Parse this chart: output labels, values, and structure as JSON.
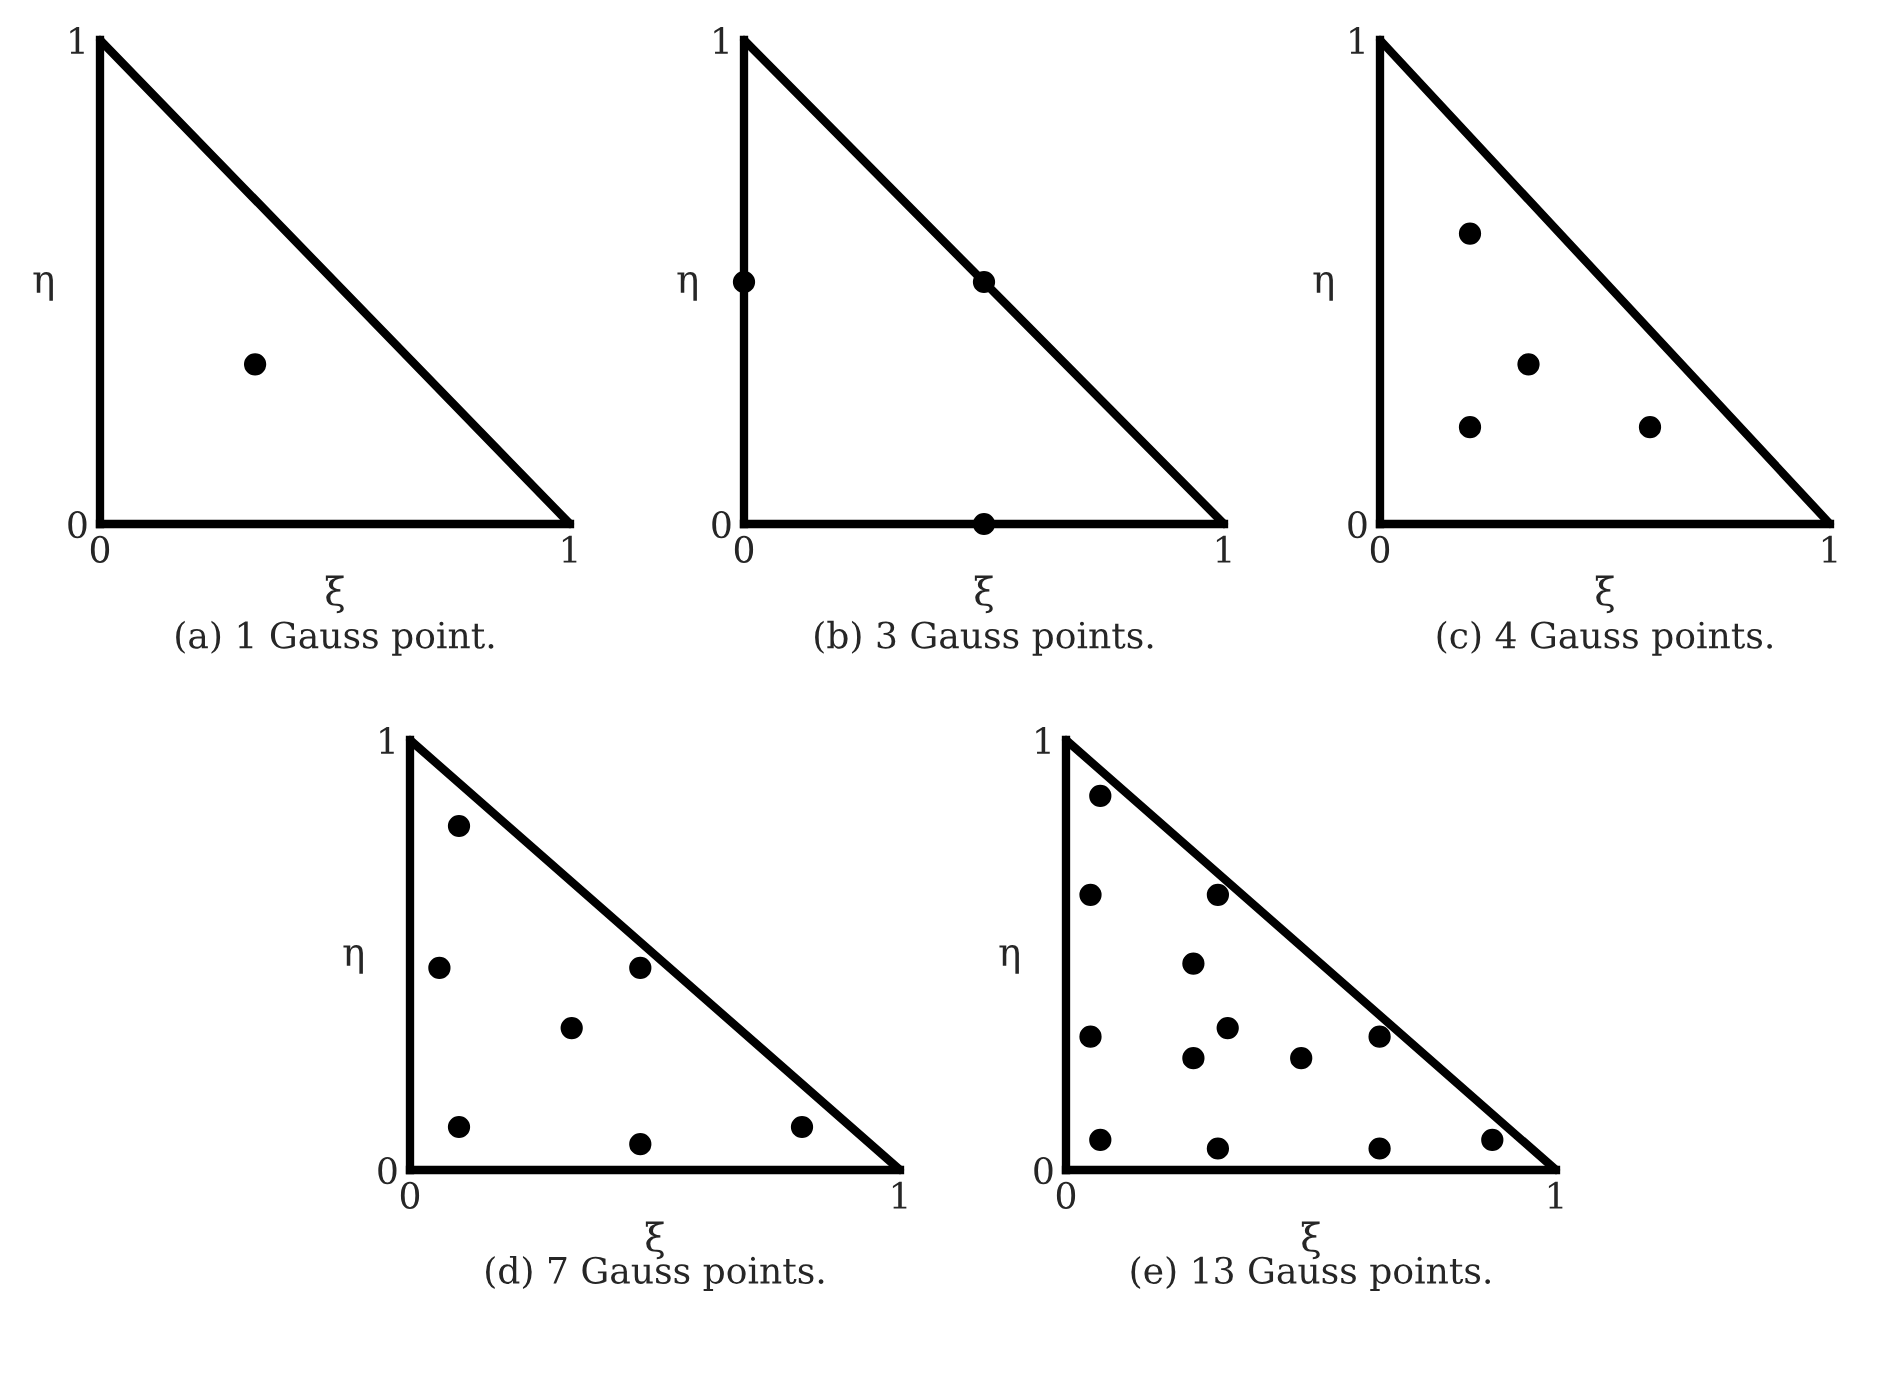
{
  "chart_data": [
    {
      "type": "scatter",
      "xlabel": "ξ",
      "ylabel": "η",
      "xlim": [
        0,
        1
      ],
      "ylim": [
        0,
        1
      ],
      "xticks": [
        0,
        1
      ],
      "yticks": [
        0,
        1
      ],
      "annotations": [
        "(a) 1 Gauss point."
      ],
      "series": [
        {
          "type": "line",
          "marker": "none",
          "color": "#000000",
          "x": [
            0,
            1
          ],
          "values": [
            1,
            0
          ]
        },
        {
          "marker": "circle",
          "color": "#000000",
          "x": [
            0.33
          ],
          "values": [
            0.33
          ]
        }
      ]
    },
    {
      "type": "scatter",
      "xlabel": "ξ",
      "ylabel": "η",
      "xlim": [
        0,
        1
      ],
      "ylim": [
        0,
        1
      ],
      "xticks": [
        0,
        1
      ],
      "yticks": [
        0,
        1
      ],
      "annotations": [
        "(b) 3 Gauss points."
      ],
      "series": [
        {
          "type": "line",
          "marker": "none",
          "color": "#000000",
          "x": [
            0,
            1
          ],
          "values": [
            1,
            0
          ]
        },
        {
          "marker": "circle",
          "color": "#000000",
          "x": [
            0.5,
            0.5,
            0
          ],
          "values": [
            0,
            0.5,
            0.5
          ]
        }
      ]
    },
    {
      "type": "scatter",
      "xlabel": "ξ",
      "ylabel": "η",
      "xlim": [
        0,
        1
      ],
      "ylim": [
        0,
        1
      ],
      "xticks": [
        0,
        1
      ],
      "yticks": [
        0,
        1
      ],
      "annotations": [
        "(c) 4 Gauss points."
      ],
      "series": [
        {
          "type": "line",
          "marker": "none",
          "color": "#000000",
          "x": [
            0,
            1
          ],
          "values": [
            1,
            0
          ]
        },
        {
          "marker": "circle",
          "color": "#000000",
          "x": [
            0.33,
            0.2,
            0.6,
            0.2
          ],
          "values": [
            0.33,
            0.2,
            0.2,
            0.6
          ]
        }
      ]
    },
    {
      "type": "scatter",
      "xlabel": "ξ",
      "ylabel": "η",
      "xlim": [
        0,
        1
      ],
      "ylim": [
        0,
        1
      ],
      "xticks": [
        0,
        1
      ],
      "yticks": [
        0,
        1
      ],
      "annotations": [
        "(d) 7 Gauss points."
      ],
      "series": [
        {
          "type": "line",
          "marker": "none",
          "color": "#000000",
          "x": [
            0,
            1
          ],
          "values": [
            1,
            0
          ]
        },
        {
          "marker": "circle",
          "color": "#000000",
          "x": [
            0.33,
            0.06,
            0.47,
            0.47,
            0.8,
            0.1,
            0.1
          ],
          "values": [
            0.33,
            0.47,
            0.06,
            0.47,
            0.1,
            0.8,
            0.1
          ]
        }
      ]
    },
    {
      "type": "scatter",
      "xlabel": "ξ",
      "ylabel": "η",
      "xlim": [
        0,
        1
      ],
      "ylim": [
        0,
        1
      ],
      "xticks": [
        0,
        1
      ],
      "yticks": [
        0,
        1
      ],
      "annotations": [
        "(e) 13 Gauss points."
      ],
      "series": [
        {
          "type": "line",
          "marker": "none",
          "color": "#000000",
          "x": [
            0,
            1
          ],
          "values": [
            1,
            0
          ]
        },
        {
          "marker": "circle",
          "color": "#000000",
          "x": [
            0.33,
            0.26,
            0.48,
            0.26,
            0.07,
            0.87,
            0.07,
            0.05,
            0.31,
            0.64,
            0.64,
            0.31,
            0.05
          ],
          "values": [
            0.33,
            0.26,
            0.26,
            0.48,
            0.07,
            0.07,
            0.87,
            0.31,
            0.05,
            0.05,
            0.31,
            0.64,
            0.64
          ]
        }
      ]
    }
  ]
}
